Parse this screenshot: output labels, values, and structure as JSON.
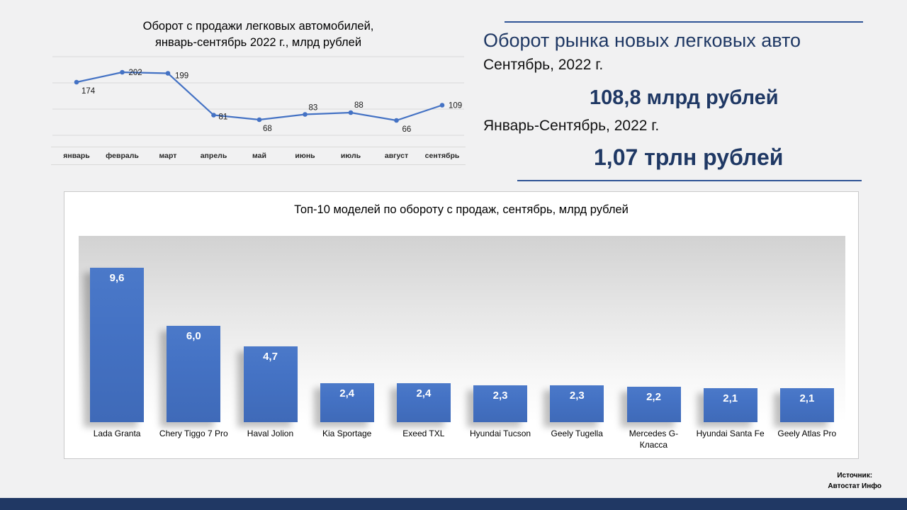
{
  "colors": {
    "accent": "#4472c4",
    "dark_blue": "#1f3864",
    "footer": "#203864",
    "gridline": "#d9d9d9"
  },
  "line_chart": {
    "title_line1": "Оборот с продажи легковых автомобилей,",
    "title_line2": "январь-сентябрь 2022 г., млрд рублей"
  },
  "summary": {
    "title": "Оборот рынка новых легковых авто",
    "period1_label": "Сентябрь, 2022 г.",
    "period1_value": "108,8 млрд рублей",
    "period2_label": "Январь-Сентябрь, 2022 г.",
    "period2_value": "1,07 трлн рублей"
  },
  "source": {
    "line1": "Источник:",
    "line2": "Автостат Инфо"
  },
  "chart_data": [
    {
      "type": "line",
      "title": "Оборот с продажи легковых автомобилей, январь-сентябрь 2022 г., млрд рублей",
      "categories": [
        "январь",
        "февраль",
        "март",
        "апрель",
        "май",
        "июнь",
        "июль",
        "август",
        "сентябрь"
      ],
      "values": [
        174,
        202,
        199,
        81,
        68,
        83,
        88,
        66,
        109
      ],
      "value_labels": [
        "174",
        "202",
        "199",
        "81",
        "68",
        "83",
        "88",
        "66",
        "109"
      ],
      "ylim": [
        0,
        250
      ],
      "grid": true,
      "legend": "none",
      "line_color": "#4472c4"
    },
    {
      "type": "bar",
      "title": "Топ-10 моделей по обороту с продаж, сентябрь, млрд рублей",
      "categories": [
        "Lada Granta",
        "Chery Tiggo 7 Pro",
        "Haval Jolion",
        "Kia Sportage",
        "Exeed TXL",
        "Hyundai Tucson",
        "Geely Tugella",
        "Mercedes G-Класса",
        "Hyundai Santa Fe",
        "Geely Atlas Pro"
      ],
      "values": [
        9.6,
        6.0,
        4.7,
        2.4,
        2.4,
        2.3,
        2.3,
        2.2,
        2.1,
        2.1
      ],
      "value_labels": [
        "9,6",
        "6,0",
        "4,7",
        "2,4",
        "2,4",
        "2,3",
        "2,3",
        "2,2",
        "2,1",
        "2,1"
      ],
      "ylim": [
        0,
        10
      ],
      "grid": false,
      "legend": "none",
      "bar_color": "#4472c4"
    }
  ]
}
